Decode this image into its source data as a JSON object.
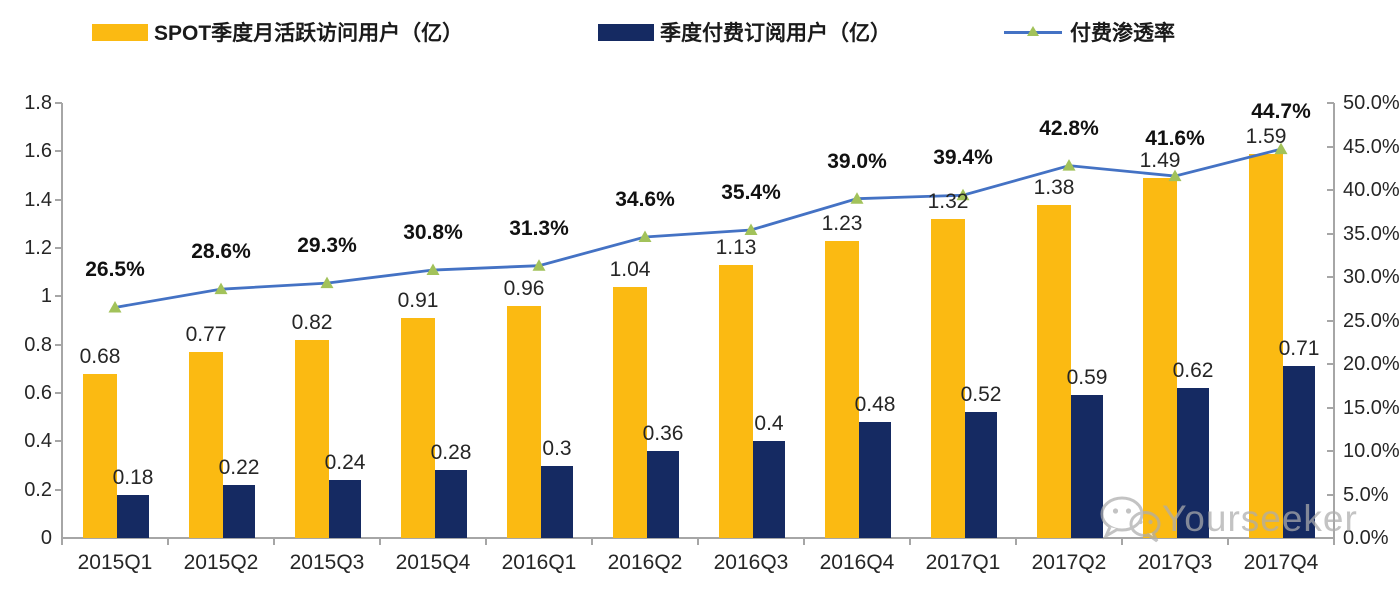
{
  "legend": {
    "items": [
      {
        "label": "SPOT季度月活跃访问用户（亿）",
        "color": "#FBBA12",
        "type": "bar"
      },
      {
        "label": "季度付费订阅用户（亿）",
        "color": "#152A62",
        "type": "bar"
      },
      {
        "label": "付费渗透率",
        "color": "#4472C4",
        "marker_color": "#A2C25A",
        "type": "line"
      }
    ]
  },
  "chart_data": {
    "type": "bar",
    "subtype": "grouped bars + line overlay (combo chart)",
    "categories": [
      "2015Q1",
      "2015Q2",
      "2015Q3",
      "2015Q4",
      "2016Q1",
      "2016Q2",
      "2016Q3",
      "2016Q4",
      "2017Q1",
      "2017Q2",
      "2017Q3",
      "2017Q4"
    ],
    "series": [
      {
        "name": "SPOT季度月活跃访问用户（亿）",
        "type": "bar",
        "axis": "left",
        "color": "#FBBA12",
        "values": [
          0.68,
          0.77,
          0.82,
          0.91,
          0.96,
          1.04,
          1.13,
          1.23,
          1.32,
          1.38,
          1.49,
          1.59
        ],
        "labels": [
          "0.68",
          "0.77",
          "0.82",
          "0.91",
          "0.96",
          "1.04",
          "1.13",
          "1.23",
          "1.32",
          "1.38",
          "1.49",
          "1.59"
        ]
      },
      {
        "name": "季度付费订阅用户（亿）",
        "type": "bar",
        "axis": "left",
        "color": "#152A62",
        "values": [
          0.18,
          0.22,
          0.24,
          0.28,
          0.3,
          0.36,
          0.4,
          0.48,
          0.52,
          0.59,
          0.62,
          0.71
        ],
        "labels": [
          "0.18",
          "0.22",
          "0.24",
          "0.28",
          "0.3",
          "0.36",
          "0.4",
          "0.48",
          "0.52",
          "0.59",
          "0.62",
          "0.71"
        ]
      },
      {
        "name": "付费渗透率",
        "type": "line",
        "axis": "right",
        "color": "#4472C4",
        "marker": "triangle-up",
        "marker_color": "#A2C25A",
        "values": [
          26.5,
          28.6,
          29.3,
          30.8,
          31.3,
          34.6,
          35.4,
          39.0,
          39.4,
          42.8,
          41.6,
          44.7
        ],
        "labels": [
          "26.5%",
          "28.6%",
          "29.3%",
          "30.8%",
          "31.3%",
          "34.6%",
          "35.4%",
          "39.0%",
          "39.4%",
          "42.8%",
          "41.6%",
          "44.7%"
        ]
      }
    ],
    "left_axis": {
      "min": 0,
      "max": 1.8,
      "tick_step": 0.2,
      "ticks": [
        "0",
        "0.2",
        "0.4",
        "0.6",
        "0.8",
        "1",
        "1.2",
        "1.4",
        "1.6",
        "1.8"
      ]
    },
    "right_axis": {
      "min": 0,
      "max": 50,
      "tick_step": 5,
      "ticks": [
        "0.0%",
        "5.0%",
        "10.0%",
        "15.0%",
        "20.0%",
        "25.0%",
        "30.0%",
        "35.0%",
        "40.0%",
        "45.0%",
        "50.0%"
      ]
    },
    "grid": false,
    "legend_position": "top"
  },
  "watermark": {
    "text": "Yourseeker",
    "icon": "wechat-icon",
    "color": "#ADADAD"
  },
  "colors": {
    "axis": "#A6A6A6",
    "text": "#262626"
  }
}
